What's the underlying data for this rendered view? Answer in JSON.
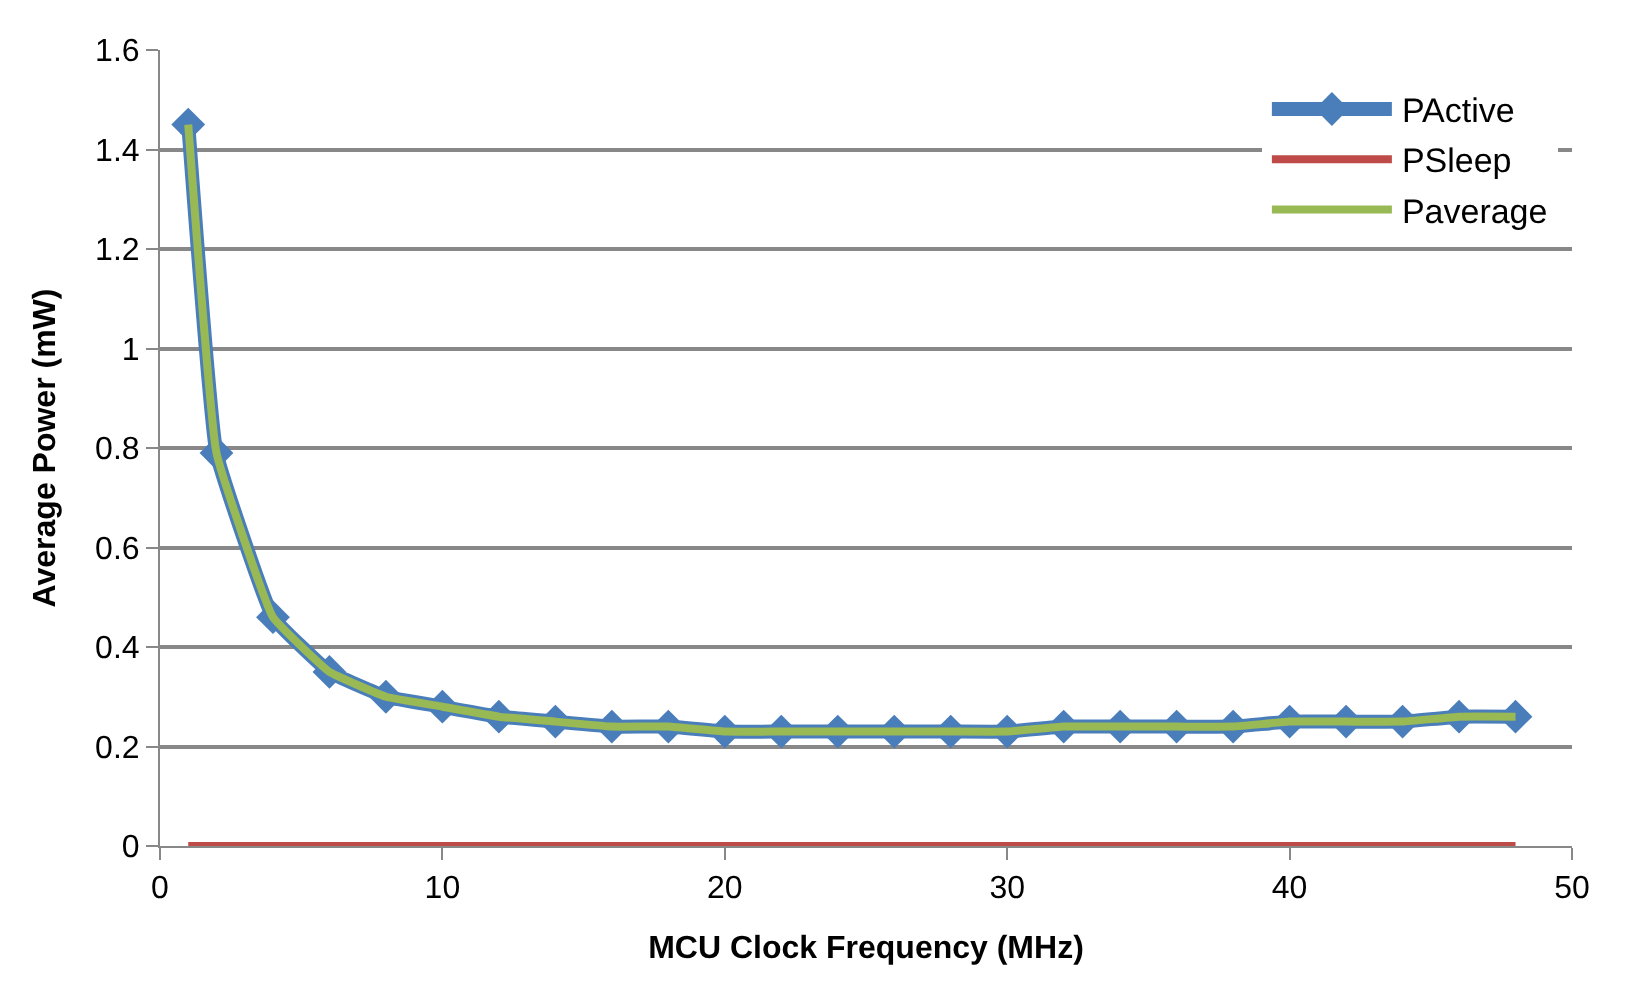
{
  "chart_data": {
    "type": "line",
    "xlabel": "MCU Clock Frequency (MHz)",
    "ylabel": "Average Power (mW)",
    "x": [
      1,
      2,
      4,
      6,
      8,
      10,
      12,
      14,
      16,
      18,
      20,
      22,
      24,
      26,
      28,
      30,
      32,
      34,
      36,
      38,
      40,
      42,
      44,
      46,
      48
    ],
    "series": [
      {
        "name": "PActive",
        "color": "#4a7ebb",
        "marker": "diamond",
        "values": [
          1.45,
          0.79,
          0.46,
          0.35,
          0.3,
          0.28,
          0.26,
          0.25,
          0.24,
          0.24,
          0.23,
          0.23,
          0.23,
          0.23,
          0.23,
          0.23,
          0.24,
          0.24,
          0.24,
          0.24,
          0.25,
          0.25,
          0.25,
          0.26,
          0.26
        ]
      },
      {
        "name": "PSleep",
        "color": "#be4b48",
        "marker": "none",
        "values": [
          0,
          0,
          0,
          0,
          0,
          0,
          0,
          0,
          0,
          0,
          0,
          0,
          0,
          0,
          0,
          0,
          0,
          0,
          0,
          0,
          0,
          0,
          0,
          0,
          0
        ]
      },
      {
        "name": "Paverage",
        "color": "#98b954",
        "marker": "none",
        "values": [
          1.45,
          0.79,
          0.46,
          0.35,
          0.3,
          0.28,
          0.26,
          0.25,
          0.24,
          0.24,
          0.23,
          0.23,
          0.23,
          0.23,
          0.23,
          0.23,
          0.24,
          0.24,
          0.24,
          0.24,
          0.25,
          0.25,
          0.25,
          0.26,
          0.26
        ]
      }
    ],
    "xlim": [
      0,
      50
    ],
    "xticks": [
      0,
      10,
      20,
      30,
      40,
      50
    ],
    "ylim": [
      0,
      1.6
    ],
    "yticks": [
      0,
      {
        "value": 0.2,
        "label": "0.2"
      },
      {
        "value": 0.4,
        "label": "0.4"
      },
      {
        "value": 0.6,
        "label": "0.6"
      },
      {
        "value": 0.8,
        "label": "0.8"
      },
      1,
      {
        "value": 1.2,
        "label": "1.2"
      },
      {
        "value": 1.4,
        "label": "1.4"
      },
      {
        "value": 1.6,
        "label": "1.6"
      }
    ],
    "grid": "y",
    "legend": "top right",
    "line_style": "solid"
  }
}
